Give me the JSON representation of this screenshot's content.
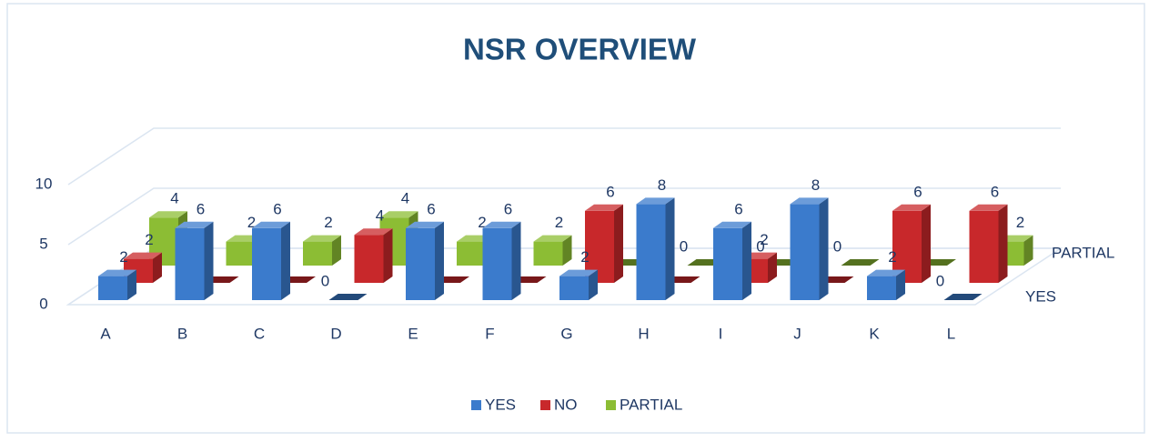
{
  "chart_data": {
    "type": "bar3d",
    "title": "NSR OVERVIEW",
    "categories": [
      "A",
      "B",
      "C",
      "D",
      "E",
      "F",
      "G",
      "H",
      "I",
      "J",
      "K",
      "L"
    ],
    "series": [
      {
        "name": "YES",
        "color": "#3b7bcc",
        "values": [
          2,
          6,
          6,
          0,
          6,
          6,
          2,
          8,
          6,
          8,
          2,
          0
        ]
      },
      {
        "name": "NO",
        "color": "#c8282b",
        "values": [
          2,
          0,
          0,
          4,
          0,
          0,
          6,
          0,
          2,
          0,
          6,
          6
        ]
      },
      {
        "name": "PARTIAL",
        "color": "#8cbd34",
        "values": [
          4,
          2,
          2,
          4,
          2,
          2,
          0,
          0,
          0,
          0,
          0,
          2
        ]
      }
    ],
    "ylim": [
      0,
      10
    ],
    "yticks": [
      0,
      5,
      10
    ],
    "grid": true,
    "legend": "bottom"
  }
}
